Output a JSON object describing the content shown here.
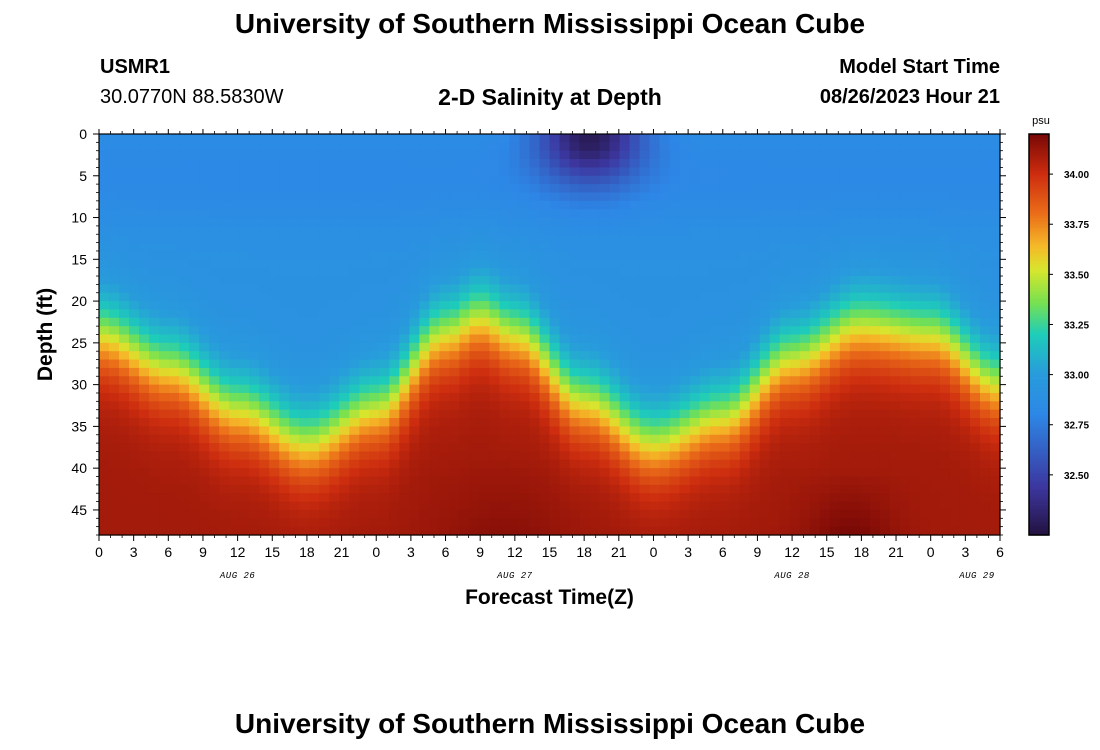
{
  "page": {
    "title_top": "University of Southern Mississippi Ocean Cube",
    "title_bottom": "University of Southern Mississippi Ocean Cube",
    "station_id": "USMR1",
    "coordinates": "30.0770N  88.5830W",
    "plot_title": "2-D Salinity at Depth",
    "model_start_label": "Model Start Time",
    "model_start_value": "08/26/2023 Hour 21"
  },
  "chart_data": {
    "type": "heatmap",
    "title": "2-D Salinity at Depth",
    "xlabel": "Forecast Time(Z)",
    "ylabel": "Depth (ft)",
    "colorbar_label": "psu",
    "x_hours_range": [
      0,
      78
    ],
    "y_depth_range": [
      0,
      48
    ],
    "y_inverted": true,
    "x_tick_labels": [
      "0",
      "3",
      "6",
      "9",
      "12",
      "15",
      "18",
      "21",
      "0",
      "3",
      "6",
      "9",
      "12",
      "15",
      "18",
      "21",
      "0",
      "3",
      "6",
      "9",
      "12",
      "15",
      "18",
      "21",
      "0",
      "3",
      "6"
    ],
    "y_ticks": [
      0,
      5,
      10,
      15,
      20,
      25,
      30,
      35,
      40,
      45
    ],
    "day_labels": [
      {
        "label": "AUG 26",
        "hour": 12
      },
      {
        "label": "AUG 27",
        "hour": 36
      },
      {
        "label": "AUG 28",
        "hour": 60
      },
      {
        "label": "AUG 29",
        "hour": 76
      }
    ],
    "colorbar_range": [
      32.2,
      34.2
    ],
    "colorbar_ticks": [
      "32.50",
      "32.75",
      "33.00",
      "33.25",
      "33.50",
      "33.75",
      "34.00"
    ],
    "halocline_depth_ft": [
      {
        "hour": 0,
        "depth": 24
      },
      {
        "hour": 6,
        "depth": 28
      },
      {
        "hour": 12,
        "depth": 33
      },
      {
        "hour": 18,
        "depth": 37
      },
      {
        "hour": 24,
        "depth": 33
      },
      {
        "hour": 30,
        "depth": 24
      },
      {
        "hour": 33,
        "depth": 22
      },
      {
        "hour": 36,
        "depth": 24
      },
      {
        "hour": 42,
        "depth": 32
      },
      {
        "hour": 48,
        "depth": 37
      },
      {
        "hour": 54,
        "depth": 34
      },
      {
        "hour": 60,
        "depth": 27
      },
      {
        "hour": 66,
        "depth": 23
      },
      {
        "hour": 72,
        "depth": 24
      },
      {
        "hour": 78,
        "depth": 30
      }
    ],
    "surface_fresh_pocket": {
      "hour_center": 42.5,
      "depth_max_ft": 7,
      "min_salinity": 32.3
    },
    "surface_salinity": 32.9,
    "bottom_salinity": 34.1
  }
}
